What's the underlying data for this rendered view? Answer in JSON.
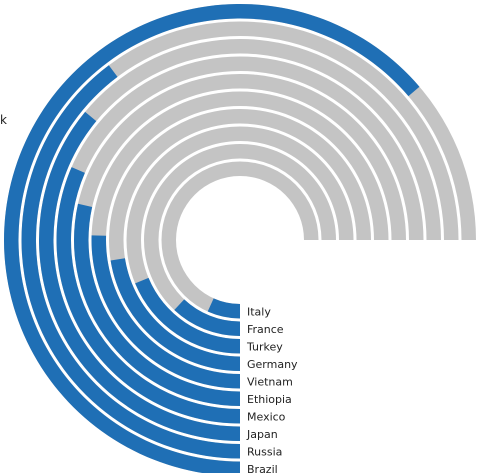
{
  "chart_data": {
    "type": "radial-bar",
    "title": "",
    "value_axis": {
      "min": 0,
      "max": 1,
      "full_sweep": "270deg"
    },
    "categories": [
      "Italy",
      "France",
      "Turkey",
      "Germany",
      "Vietnam",
      "Ethiopia",
      "Mexico",
      "Japan",
      "Russia",
      "Brazil"
    ],
    "series": [
      {
        "values": [
          0.09,
          0.16,
          0.25,
          0.3,
          0.34,
          0.38,
          0.42,
          0.48,
          0.53,
          0.85
        ]
      }
    ],
    "colors": {
      "bar": "#1f6fb5",
      "track": "#c4c4c4",
      "separator": "#ffffff"
    },
    "edge_label": "k"
  }
}
